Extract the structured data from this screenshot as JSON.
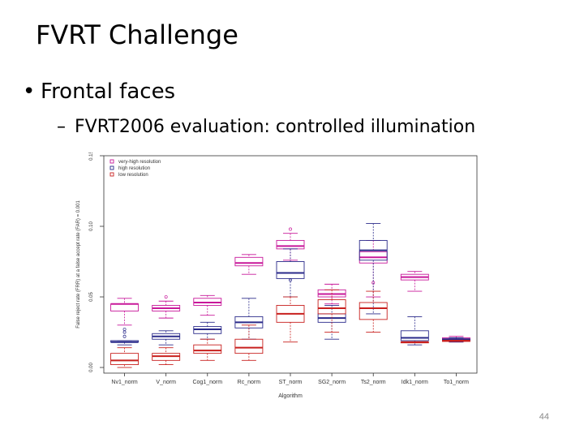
{
  "slide": {
    "title": "FVRT Challenge",
    "bullet_marker": "•",
    "bullet": "Frontal faces",
    "sub_marker": "–",
    "sub_bullet": "FVRT2006 evaluation: controlled illumination",
    "page_number": "44"
  },
  "chart_data": {
    "type": "boxplot",
    "title": "",
    "xlabel": "Algorithm",
    "ylabel": "False reject rate (FRR) at a false accept rate (FAR) = 0.001",
    "ylim": [
      -0.004,
      0.15
    ],
    "yticks": [
      0.0,
      0.05,
      0.1,
      0.15
    ],
    "ytick_labels": [
      "0.00",
      "0.05",
      "0.10",
      "0.15"
    ],
    "grid": false,
    "legend_position": "top-left",
    "categories": [
      "Nv1_norm",
      "V_norm",
      "Cog1_norm",
      "Rc_norm",
      "ST_norm",
      "SG2_norm",
      "Ts2_norm",
      "Idk1_norm",
      "To1_norm"
    ],
    "series": [
      {
        "name": "very-high resolution",
        "color": "#c8189a",
        "boxes": [
          {
            "category": "Nv1_norm",
            "min": 0.03,
            "q1": 0.04,
            "median": 0.045,
            "q3": 0.045,
            "max": 0.049
          },
          {
            "category": "V_norm",
            "min": 0.035,
            "q1": 0.04,
            "median": 0.042,
            "q3": 0.044,
            "max": 0.047,
            "outliers": [
              0.05
            ]
          },
          {
            "category": "Cog1_norm",
            "min": 0.037,
            "q1": 0.044,
            "median": 0.046,
            "q3": 0.049,
            "max": 0.051
          },
          {
            "category": "Rc_norm",
            "min": 0.066,
            "q1": 0.072,
            "median": 0.074,
            "q3": 0.078,
            "max": 0.08
          },
          {
            "category": "ST_norm",
            "min": 0.076,
            "q1": 0.084,
            "median": 0.086,
            "q3": 0.09,
            "max": 0.095,
            "outliers": [
              0.098
            ]
          },
          {
            "category": "SG2_norm",
            "min": 0.045,
            "q1": 0.05,
            "median": 0.052,
            "q3": 0.055,
            "max": 0.059
          },
          {
            "category": "Ts2_norm",
            "min": 0.05,
            "q1": 0.074,
            "median": 0.078,
            "q3": 0.082,
            "max": 0.09,
            "outliers": [
              0.06
            ]
          },
          {
            "category": "Idk1_norm",
            "min": 0.054,
            "q1": 0.062,
            "median": 0.064,
            "q3": 0.066,
            "max": 0.068
          },
          {
            "category": "To1_norm",
            "min": 0.018,
            "q1": 0.019,
            "median": 0.02,
            "q3": 0.021,
            "max": 0.022
          }
        ]
      },
      {
        "name": "high resolution",
        "color": "#2a2a8a",
        "boxes": [
          {
            "category": "Nv1_norm",
            "min": 0.016,
            "q1": 0.018,
            "median": 0.018,
            "q3": 0.019,
            "max": 0.019,
            "outliers": [
              0.022,
              0.025,
              0.027
            ]
          },
          {
            "category": "V_norm",
            "min": 0.016,
            "q1": 0.02,
            "median": 0.022,
            "q3": 0.024,
            "max": 0.026
          },
          {
            "category": "Cog1_norm",
            "min": 0.02,
            "q1": 0.024,
            "median": 0.027,
            "q3": 0.029,
            "max": 0.032
          },
          {
            "category": "Rc_norm",
            "min": 0.02,
            "q1": 0.028,
            "median": 0.032,
            "q3": 0.036,
            "max": 0.049
          },
          {
            "category": "ST_norm",
            "min": 0.05,
            "q1": 0.063,
            "median": 0.067,
            "q3": 0.075,
            "max": 0.084,
            "outliers": [
              0.062
            ]
          },
          {
            "category": "SG2_norm",
            "min": 0.02,
            "q1": 0.032,
            "median": 0.035,
            "q3": 0.038,
            "max": 0.044
          },
          {
            "category": "Ts2_norm",
            "min": 0.038,
            "q1": 0.076,
            "median": 0.083,
            "q3": 0.09,
            "max": 0.102
          },
          {
            "category": "Idk1_norm",
            "min": 0.016,
            "q1": 0.019,
            "median": 0.021,
            "q3": 0.026,
            "max": 0.036
          },
          {
            "category": "To1_norm",
            "min": 0.018,
            "q1": 0.019,
            "median": 0.02,
            "q3": 0.02,
            "max": 0.021
          }
        ]
      },
      {
        "name": "low resolution",
        "color": "#c8201e",
        "boxes": [
          {
            "category": "Nv1_norm",
            "min": 0.0,
            "q1": 0.002,
            "median": 0.005,
            "q3": 0.01,
            "max": 0.014
          },
          {
            "category": "V_norm",
            "min": 0.002,
            "q1": 0.005,
            "median": 0.008,
            "q3": 0.01,
            "max": 0.014
          },
          {
            "category": "Cog1_norm",
            "min": 0.005,
            "q1": 0.01,
            "median": 0.012,
            "q3": 0.016,
            "max": 0.02
          },
          {
            "category": "Rc_norm",
            "min": 0.005,
            "q1": 0.01,
            "median": 0.014,
            "q3": 0.02,
            "max": 0.03
          },
          {
            "category": "ST_norm",
            "min": 0.018,
            "q1": 0.032,
            "median": 0.038,
            "q3": 0.044,
            "max": 0.05
          },
          {
            "category": "SG2_norm",
            "min": 0.025,
            "q1": 0.038,
            "median": 0.042,
            "q3": 0.048,
            "max": 0.055
          },
          {
            "category": "Ts2_norm",
            "min": 0.025,
            "q1": 0.034,
            "median": 0.042,
            "q3": 0.046,
            "max": 0.054
          },
          {
            "category": "Idk1_norm",
            "min": 0.018,
            "q1": 0.018,
            "median": 0.018,
            "q3": 0.018,
            "max": 0.018
          },
          {
            "category": "To1_norm",
            "min": 0.019,
            "q1": 0.019,
            "median": 0.019,
            "q3": 0.019,
            "max": 0.019
          }
        ]
      }
    ]
  }
}
